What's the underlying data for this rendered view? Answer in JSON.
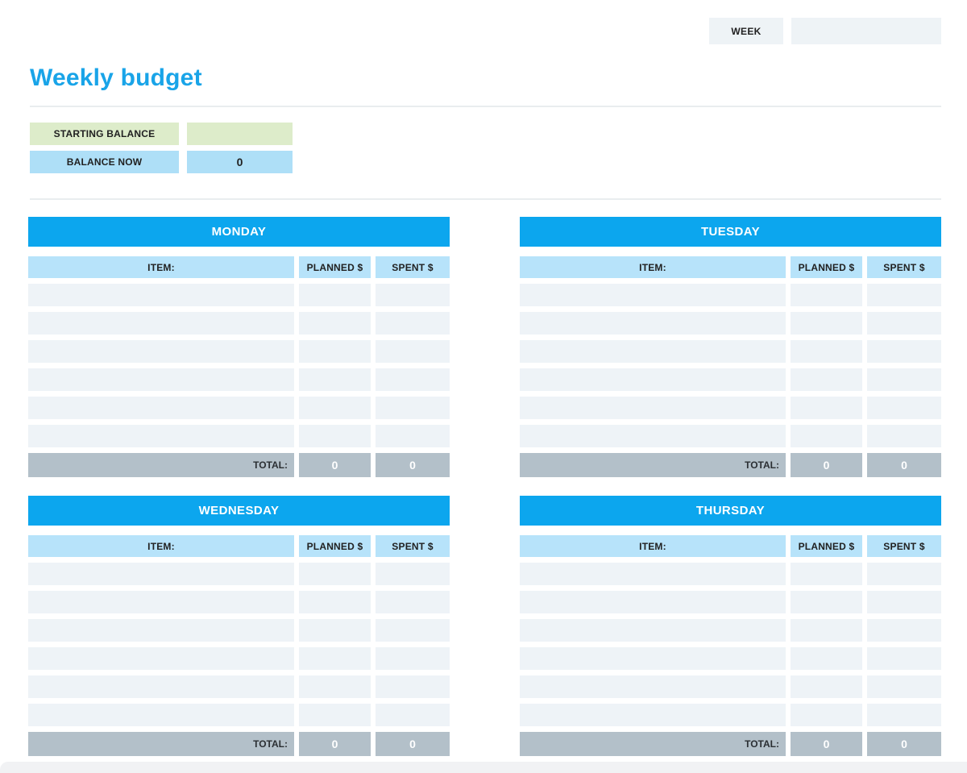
{
  "colors": {
    "accent_blue": "#0ca6ee",
    "title_blue": "#19a4e8",
    "light_blue": "#b7e3fa",
    "balance_blue": "#aedff7",
    "light_green": "#ddecca",
    "row_fill": "#eef3f7",
    "total_gray": "#b3c0c9",
    "field_gray": "#eef3f6",
    "divider": "#e9edef",
    "text_dark": "#212121"
  },
  "header": {
    "week_label": "WEEK",
    "week_value": ""
  },
  "title": "Weekly budget",
  "balance": {
    "starting_label": "STARTING BALANCE",
    "starting_value": "",
    "now_label": "BALANCE NOW",
    "now_value": "0"
  },
  "columns": {
    "item": "ITEM:",
    "planned": "PLANNED $",
    "spent": "SPENT $"
  },
  "total_label": "TOTAL:",
  "days": [
    {
      "name": "MONDAY",
      "rows": [
        {
          "item": "",
          "planned": "",
          "spent": ""
        },
        {
          "item": "",
          "planned": "",
          "spent": ""
        },
        {
          "item": "",
          "planned": "",
          "spent": ""
        },
        {
          "item": "",
          "planned": "",
          "spent": ""
        },
        {
          "item": "",
          "planned": "",
          "spent": ""
        },
        {
          "item": "",
          "planned": "",
          "spent": ""
        }
      ],
      "total_planned": "0",
      "total_spent": "0"
    },
    {
      "name": "TUESDAY",
      "rows": [
        {
          "item": "",
          "planned": "",
          "spent": ""
        },
        {
          "item": "",
          "planned": "",
          "spent": ""
        },
        {
          "item": "",
          "planned": "",
          "spent": ""
        },
        {
          "item": "",
          "planned": "",
          "spent": ""
        },
        {
          "item": "",
          "planned": "",
          "spent": ""
        },
        {
          "item": "",
          "planned": "",
          "spent": ""
        }
      ],
      "total_planned": "0",
      "total_spent": "0"
    },
    {
      "name": "WEDNESDAY",
      "rows": [
        {
          "item": "",
          "planned": "",
          "spent": ""
        },
        {
          "item": "",
          "planned": "",
          "spent": ""
        },
        {
          "item": "",
          "planned": "",
          "spent": ""
        },
        {
          "item": "",
          "planned": "",
          "spent": ""
        },
        {
          "item": "",
          "planned": "",
          "spent": ""
        },
        {
          "item": "",
          "planned": "",
          "spent": ""
        }
      ],
      "total_planned": "0",
      "total_spent": "0"
    },
    {
      "name": "THURSDAY",
      "rows": [
        {
          "item": "",
          "planned": "",
          "spent": ""
        },
        {
          "item": "",
          "planned": "",
          "spent": ""
        },
        {
          "item": "",
          "planned": "",
          "spent": ""
        },
        {
          "item": "",
          "planned": "",
          "spent": ""
        },
        {
          "item": "",
          "planned": "",
          "spent": ""
        },
        {
          "item": "",
          "planned": "",
          "spent": ""
        }
      ],
      "total_planned": "0",
      "total_spent": "0"
    }
  ]
}
